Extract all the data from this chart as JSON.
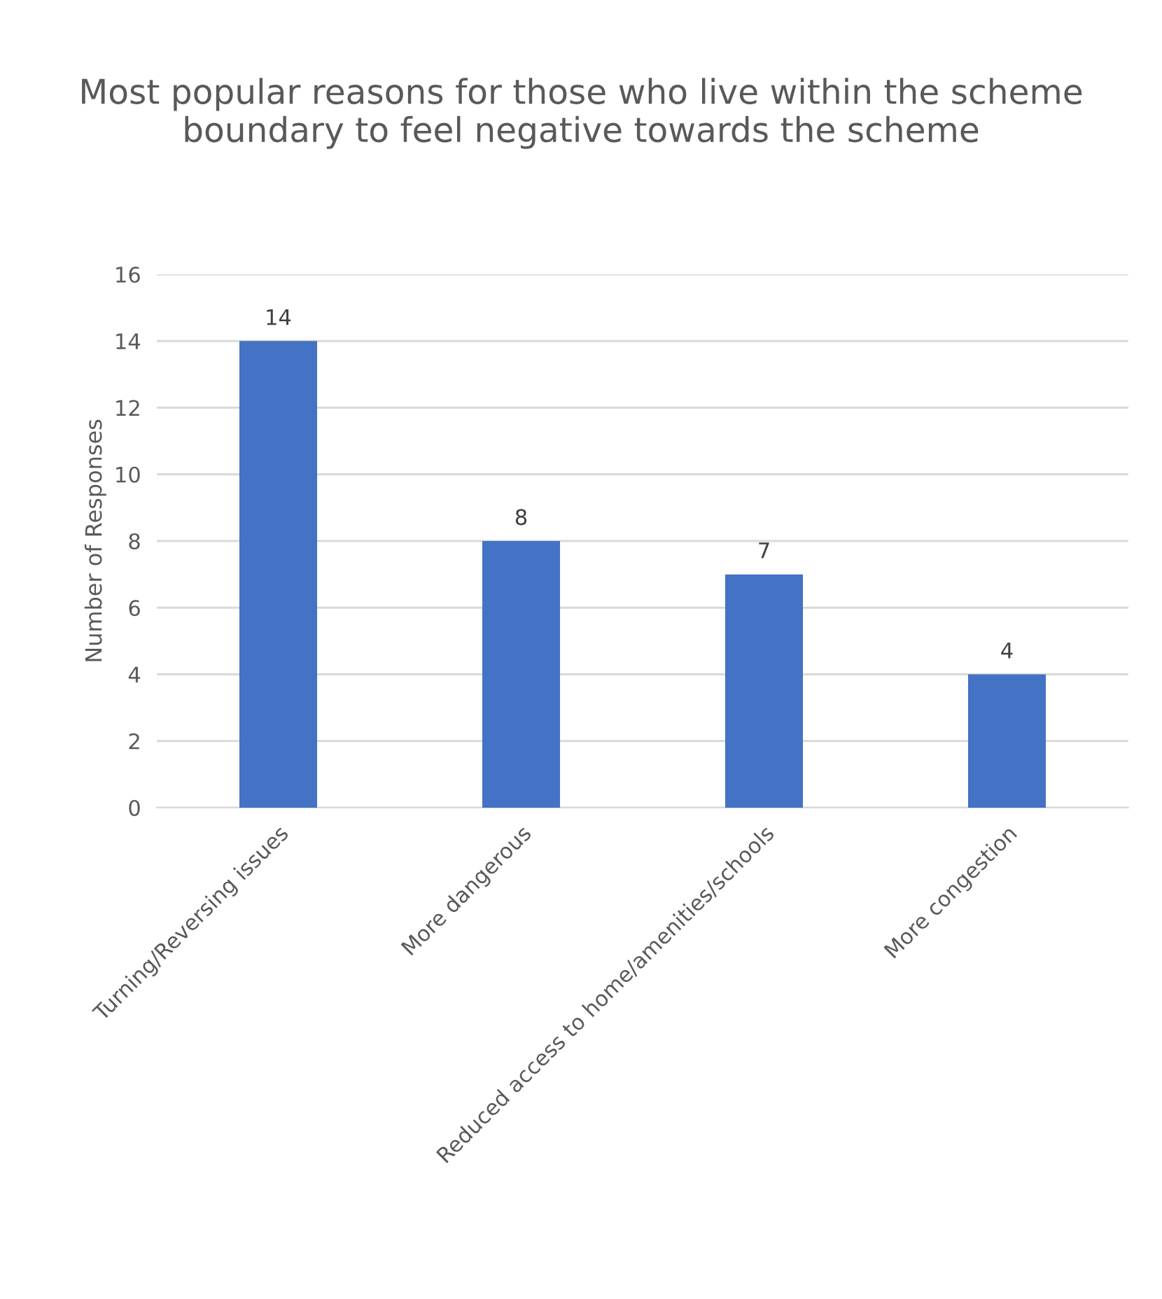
{
  "chart_data": {
    "type": "bar",
    "title": "Most popular reasons for those who live within the scheme boundary to feel negative towards the scheme",
    "ylabel": "Number of Responses",
    "categories": [
      "Turning/Reversing issues",
      "More dangerous",
      "Reduced access to home/amenities/schools",
      "More congestion"
    ],
    "values": [
      14,
      8,
      7,
      4
    ],
    "color": "#4472c4",
    "ylim": [
      0,
      16
    ],
    "yticks": [
      0,
      2,
      4,
      6,
      8,
      10,
      12,
      14,
      16
    ],
    "grid": "y",
    "data_labels": true
  }
}
